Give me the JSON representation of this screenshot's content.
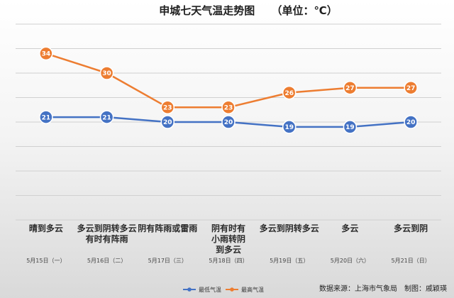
{
  "chart_data": {
    "type": "line",
    "title": "申城七天气温走势图",
    "unit": "（单位：℃）",
    "categories": [
      {
        "weather": [
          "晴到多云"
        ],
        "date": "5月15日（一）"
      },
      {
        "weather": [
          "多云到阴转多云",
          "有时有阵雨"
        ],
        "date": "5月16日（二）"
      },
      {
        "weather": [
          "阴有阵雨或雷雨"
        ],
        "date": "5月17日（三）"
      },
      {
        "weather": [
          "阴有时有",
          "小雨转阴",
          "到多云"
        ],
        "date": "5月18日（四）"
      },
      {
        "weather": [
          "多云到阴转多云"
        ],
        "date": "5月19日（五）"
      },
      {
        "weather": [
          "多云"
        ],
        "date": "5月20日（六）"
      },
      {
        "weather": [
          "多云到阴"
        ],
        "date": "5月21日（日）"
      }
    ],
    "series": [
      {
        "name": "最低气温",
        "values": [
          21,
          21,
          20,
          20,
          19,
          19,
          20
        ],
        "color": "#4472c4"
      },
      {
        "name": "最高气温",
        "values": [
          34,
          30,
          23,
          23,
          26,
          27,
          27
        ],
        "color": "#ed7d31"
      }
    ],
    "ylim": [
      0,
      40
    ],
    "grid": true,
    "legend": "bottom-center"
  },
  "footer": {
    "credit": "数据来源：上海市气象局　制图：戚颖瑛"
  }
}
